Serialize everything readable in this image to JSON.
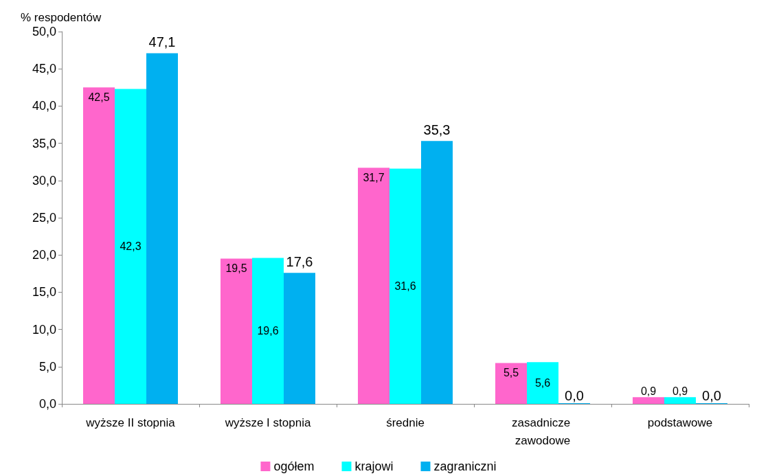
{
  "chart_data": {
    "type": "bar",
    "ylabel": "% respodentów",
    "categories": [
      "wyższe II stopnia",
      "wyższe I stopnia",
      "średnie",
      "zasadnicze zawodowe",
      "podstawowe"
    ],
    "series": [
      {
        "name": "ogółem",
        "color": "#ff66cc",
        "values": [
          42.5,
          19.5,
          31.7,
          5.5,
          0.9
        ],
        "value_labels": [
          "42,5",
          "19,5",
          "31,7",
          "5,5",
          "0,9"
        ]
      },
      {
        "name": "krajowi",
        "color": "#00ffff",
        "values": [
          42.3,
          19.6,
          31.6,
          5.6,
          0.9
        ],
        "value_labels": [
          "42,3",
          "19,6",
          "31,6",
          "5,6",
          "0,9"
        ]
      },
      {
        "name": "zagraniczni",
        "color": "#00b0f0",
        "values": [
          47.1,
          17.6,
          35.3,
          0.0,
          0.0
        ],
        "value_labels": [
          "47,1",
          "17,6",
          "35,3",
          "0,0",
          "0,0"
        ]
      }
    ],
    "ylim": [
      0,
      50
    ],
    "yticks": [
      {
        "value": 0,
        "label": "0,0"
      },
      {
        "value": 5,
        "label": "5,0"
      },
      {
        "value": 10,
        "label": "10,0"
      },
      {
        "value": 15,
        "label": "15,0"
      },
      {
        "value": 20,
        "label": "20,0"
      },
      {
        "value": 25,
        "label": "25,0"
      },
      {
        "value": 30,
        "label": "30,0"
      },
      {
        "value": 35,
        "label": "35,0"
      },
      {
        "value": 40,
        "label": "40,0"
      },
      {
        "value": 45,
        "label": "45,0"
      },
      {
        "value": 50,
        "label": "50,0"
      }
    ],
    "grid": false,
    "legend": "bottom"
  }
}
